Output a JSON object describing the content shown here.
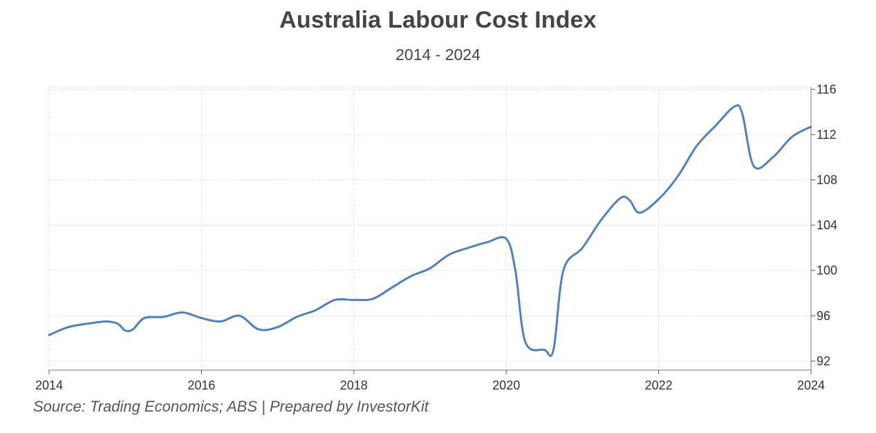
{
  "chart_data": {
    "type": "line",
    "title": "Australia Labour Cost Index",
    "subtitle": "2014 - 2024",
    "xlabel": "",
    "ylabel": "",
    "source": "Source: Trading Economics; ABS | Prepared by InvestorKit",
    "xlim": [
      2014,
      2024
    ],
    "ylim": [
      91.2,
      116.2
    ],
    "x_ticks": [
      "2014",
      "2016",
      "2018",
      "2020",
      "2022",
      "2024"
    ],
    "y_ticks": [
      "116",
      "112",
      "108",
      "104",
      "100",
      "96",
      "92"
    ],
    "grid": true,
    "line_color": "#4f7fbf",
    "series": [
      {
        "x": [
          2014.0,
          2014.25,
          2014.5,
          2014.75,
          2014.9,
          2015.0,
          2015.1,
          2015.25,
          2015.5,
          2015.75,
          2016.0,
          2016.25,
          2016.5,
          2016.75,
          2017.0,
          2017.25,
          2017.5,
          2017.75,
          2018.0,
          2018.25,
          2018.5,
          2018.75,
          2019.0,
          2019.25,
          2019.5,
          2019.75,
          2020.0,
          2020.12,
          2020.25,
          2020.5,
          2020.62,
          2020.75,
          2021.0,
          2021.25,
          2021.5,
          2021.62,
          2021.75,
          2022.0,
          2022.25,
          2022.5,
          2022.75,
          2023.0,
          2023.1,
          2023.25,
          2023.5,
          2023.75,
          2024.0
        ],
        "values": [
          94.3,
          95.0,
          95.3,
          95.5,
          95.3,
          94.7,
          94.8,
          95.8,
          95.9,
          96.3,
          95.8,
          95.5,
          96.0,
          94.8,
          95.0,
          95.9,
          96.5,
          97.4,
          97.4,
          97.5,
          98.5,
          99.5,
          100.2,
          101.4,
          102.0,
          102.5,
          102.8,
          100.0,
          93.7,
          93.0,
          93.0,
          100.0,
          102.0,
          104.5,
          106.4,
          106.2,
          105.1,
          106.3,
          108.3,
          111.0,
          112.8,
          114.5,
          113.8,
          109.2,
          110.0,
          111.8,
          112.7
        ]
      }
    ]
  }
}
